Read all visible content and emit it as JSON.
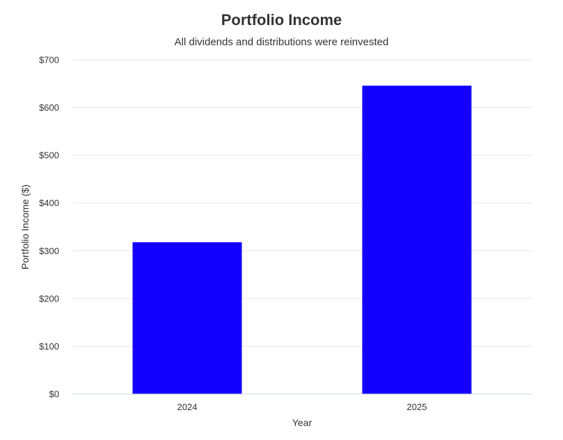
{
  "chart_data": {
    "type": "bar",
    "title": "Portfolio Income",
    "subtitle": "All dividends and distributions were reinvested",
    "xlabel": "Year",
    "ylabel": "Portfolio Income ($)",
    "categories": [
      "2024",
      "2025"
    ],
    "values": [
      318,
      646
    ],
    "ylim": [
      0,
      700
    ],
    "yticks": [
      0,
      100,
      200,
      300,
      400,
      500,
      600,
      700
    ],
    "ytick_labels": [
      "$0",
      "$100",
      "$200",
      "$300",
      "$400",
      "$500",
      "$600",
      "$700"
    ],
    "bar_color": "#1400ff",
    "grid": true,
    "legend": false
  }
}
